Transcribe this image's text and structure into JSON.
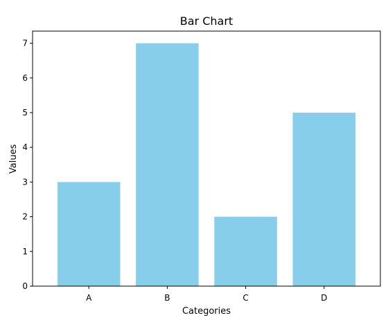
{
  "chart_data": {
    "type": "bar",
    "title": "Bar Chart",
    "xlabel": "Categories",
    "ylabel": "Values",
    "categories": [
      "A",
      "B",
      "C",
      "D"
    ],
    "values": [
      3,
      7,
      2,
      5
    ],
    "ylim": [
      0,
      7.35
    ],
    "yticks": [
      0,
      1,
      2,
      3,
      4,
      5,
      6,
      7
    ],
    "bar_color": "#87ceeb",
    "grid": false,
    "legend": "none"
  }
}
